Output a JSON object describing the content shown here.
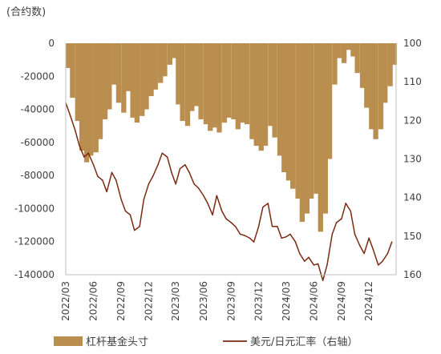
{
  "chart_data": {
    "type": "bar+line",
    "unit_label": "(合约数)",
    "colors": {
      "bars": "#B98E4F",
      "line": "#7B2A12"
    },
    "left_axis": {
      "min": -140000,
      "max": 0,
      "ticks": [
        0,
        -20000,
        -40000,
        -60000,
        -80000,
        -100000,
        -120000,
        -140000
      ],
      "tick_labels": [
        "0",
        "-20000",
        "-40000",
        "-60000",
        "-80000",
        "-100000",
        "-120000",
        "-140000"
      ]
    },
    "right_axis": {
      "min": 100,
      "max": 160,
      "inverted": true,
      "ticks": [
        100,
        110,
        120,
        130,
        140,
        150,
        160
      ],
      "tick_labels": [
        "100",
        "110",
        "120",
        "130",
        "140",
        "150",
        "160"
      ]
    },
    "x_tick_labels": [
      "2022/03",
      "2022/06",
      "2022/09",
      "2022/12",
      "2023/03",
      "2023/06",
      "2023/09",
      "2023/12",
      "2024/03",
      "2024/06",
      "2024/09",
      "2024/12"
    ],
    "series": [
      {
        "name": "杠杆基金头寸",
        "kind": "bar",
        "axis": "left",
        "points": [
          [
            "2022-03-01",
            -15000
          ],
          [
            "2022-03-15",
            -33000
          ],
          [
            "2022-04-01",
            -47000
          ],
          [
            "2022-04-15",
            -65000
          ],
          [
            "2022-05-01",
            -72000
          ],
          [
            "2022-05-15",
            -68000
          ],
          [
            "2022-06-01",
            -66000
          ],
          [
            "2022-06-15",
            -58000
          ],
          [
            "2022-07-01",
            -46000
          ],
          [
            "2022-07-15",
            -40000
          ],
          [
            "2022-08-01",
            -25000
          ],
          [
            "2022-08-15",
            -36000
          ],
          [
            "2022-09-01",
            -42000
          ],
          [
            "2022-09-15",
            -29000
          ],
          [
            "2022-10-01",
            -45000
          ],
          [
            "2022-10-15",
            -48000
          ],
          [
            "2022-11-01",
            -44000
          ],
          [
            "2022-11-15",
            -40000
          ],
          [
            "2022-12-01",
            -32000
          ],
          [
            "2022-12-15",
            -28000
          ],
          [
            "2023-01-01",
            -24000
          ],
          [
            "2023-01-15",
            -20000
          ],
          [
            "2023-02-01",
            -13000
          ],
          [
            "2023-02-15",
            -9000
          ],
          [
            "2023-03-01",
            -37000
          ],
          [
            "2023-03-15",
            -47000
          ],
          [
            "2023-04-01",
            -50000
          ],
          [
            "2023-04-15",
            -41000
          ],
          [
            "2023-05-01",
            -38000
          ],
          [
            "2023-05-15",
            -46000
          ],
          [
            "2023-06-01",
            -49000
          ],
          [
            "2023-06-15",
            -53000
          ],
          [
            "2023-07-01",
            -51000
          ],
          [
            "2023-07-15",
            -54000
          ],
          [
            "2023-08-01",
            -48000
          ],
          [
            "2023-08-15",
            -45000
          ],
          [
            "2023-09-01",
            -46000
          ],
          [
            "2023-09-15",
            -52000
          ],
          [
            "2023-10-01",
            -48000
          ],
          [
            "2023-10-15",
            -49000
          ],
          [
            "2023-11-01",
            -58000
          ],
          [
            "2023-11-15",
            -62000
          ],
          [
            "2023-12-01",
            -65000
          ],
          [
            "2023-12-15",
            -62000
          ],
          [
            "2024-01-01",
            -50000
          ],
          [
            "2024-01-15",
            -57000
          ],
          [
            "2024-02-01",
            -68000
          ],
          [
            "2024-02-15",
            -78000
          ],
          [
            "2024-03-01",
            -83000
          ],
          [
            "2024-03-15",
            -88000
          ],
          [
            "2024-04-01",
            -94000
          ],
          [
            "2024-04-15",
            -108000
          ],
          [
            "2024-05-01",
            -103000
          ],
          [
            "2024-05-15",
            -94000
          ],
          [
            "2024-06-01",
            -91000
          ],
          [
            "2024-06-15",
            -114000
          ],
          [
            "2024-07-01",
            -103000
          ],
          [
            "2024-07-15",
            -70000
          ],
          [
            "2024-08-01",
            -25000
          ],
          [
            "2024-08-15",
            -9000
          ],
          [
            "2024-09-01",
            -12000
          ],
          [
            "2024-09-15",
            -4000
          ],
          [
            "2024-10-01",
            -8000
          ],
          [
            "2024-10-15",
            -18000
          ],
          [
            "2024-11-01",
            -27000
          ],
          [
            "2024-11-15",
            -39000
          ],
          [
            "2024-12-01",
            -52000
          ],
          [
            "2024-12-15",
            -58000
          ],
          [
            "2025-01-01",
            -52000
          ],
          [
            "2025-01-15",
            -36000
          ],
          [
            "2025-02-01",
            -26000
          ],
          [
            "2025-02-15",
            -13000
          ]
        ]
      },
      {
        "name": "美元/日元汇率（右轴）",
        "kind": "line",
        "axis": "right",
        "points": [
          [
            "2022-03-01",
            115.5
          ],
          [
            "2022-03-15",
            118.5
          ],
          [
            "2022-04-01",
            122.5
          ],
          [
            "2022-04-15",
            126.5
          ],
          [
            "2022-05-01",
            129.5
          ],
          [
            "2022-05-15",
            128.5
          ],
          [
            "2022-06-01",
            131.5
          ],
          [
            "2022-06-15",
            134.5
          ],
          [
            "2022-07-01",
            135.5
          ],
          [
            "2022-07-15",
            138.5
          ],
          [
            "2022-08-01",
            133.5
          ],
          [
            "2022-08-15",
            135.5
          ],
          [
            "2022-09-01",
            140.5
          ],
          [
            "2022-09-15",
            143.5
          ],
          [
            "2022-10-01",
            144.5
          ],
          [
            "2022-10-15",
            148.5
          ],
          [
            "2022-11-01",
            147.5
          ],
          [
            "2022-11-15",
            140.5
          ],
          [
            "2022-12-01",
            136.5
          ],
          [
            "2022-12-15",
            134.5
          ],
          [
            "2023-01-01",
            131.5
          ],
          [
            "2023-01-15",
            128.5
          ],
          [
            "2023-02-01",
            129.5
          ],
          [
            "2023-02-15",
            133.5
          ],
          [
            "2023-03-01",
            136.5
          ],
          [
            "2023-03-15",
            132.5
          ],
          [
            "2023-04-01",
            131.5
          ],
          [
            "2023-04-15",
            133.5
          ],
          [
            "2023-05-01",
            136.5
          ],
          [
            "2023-05-15",
            137.5
          ],
          [
            "2023-06-01",
            139.5
          ],
          [
            "2023-06-15",
            141.5
          ],
          [
            "2023-07-01",
            144.5
          ],
          [
            "2023-07-15",
            139.5
          ],
          [
            "2023-08-01",
            143.5
          ],
          [
            "2023-08-15",
            145.5
          ],
          [
            "2023-09-01",
            146.5
          ],
          [
            "2023-09-15",
            147.5
          ],
          [
            "2023-10-01",
            149.5
          ],
          [
            "2023-10-15",
            149.8
          ],
          [
            "2023-11-01",
            150.5
          ],
          [
            "2023-11-15",
            151.5
          ],
          [
            "2023-12-01",
            147.5
          ],
          [
            "2023-12-15",
            142.5
          ],
          [
            "2024-01-01",
            141.5
          ],
          [
            "2024-01-15",
            147.5
          ],
          [
            "2024-02-01",
            147.5
          ],
          [
            "2024-02-15",
            150.5
          ],
          [
            "2024-03-01",
            150.2
          ],
          [
            "2024-03-15",
            149.5
          ],
          [
            "2024-04-01",
            151.5
          ],
          [
            "2024-04-15",
            154.5
          ],
          [
            "2024-05-01",
            156.5
          ],
          [
            "2024-05-15",
            155.5
          ],
          [
            "2024-06-01",
            157.5
          ],
          [
            "2024-06-15",
            157.2
          ],
          [
            "2024-07-01",
            161.5
          ],
          [
            "2024-07-15",
            157.5
          ],
          [
            "2024-08-01",
            149.5
          ],
          [
            "2024-08-15",
            146.5
          ],
          [
            "2024-09-01",
            145.5
          ],
          [
            "2024-09-15",
            141.5
          ],
          [
            "2024-10-01",
            143.5
          ],
          [
            "2024-10-15",
            149.5
          ],
          [
            "2024-11-01",
            152.5
          ],
          [
            "2024-11-15",
            154.5
          ],
          [
            "2024-12-01",
            150.5
          ],
          [
            "2024-12-15",
            153.5
          ],
          [
            "2025-01-01",
            157.5
          ],
          [
            "2025-01-15",
            156.5
          ],
          [
            "2025-02-01",
            154.5
          ],
          [
            "2025-02-15",
            151.5
          ]
        ]
      }
    ],
    "grid": false,
    "legend_position": "bottom"
  }
}
